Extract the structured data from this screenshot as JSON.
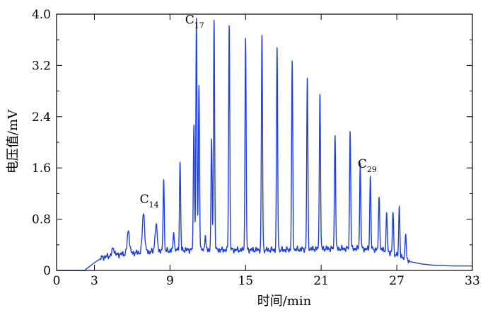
{
  "chart_data": {
    "type": "line",
    "xlabel": "时间/min",
    "ylabel": "电压值/mV",
    "xlim": [
      0,
      33
    ],
    "ylim": [
      0,
      4.0
    ],
    "xticks": [
      0,
      3,
      9,
      15,
      21,
      27,
      33
    ],
    "yticks": [
      0,
      0.8,
      1.6,
      2.4,
      3.2,
      4.0
    ],
    "xtick_labels": [
      "0",
      "3",
      "9",
      "15",
      "21",
      "27",
      "33"
    ],
    "ytick_labels": [
      "0",
      "0.8",
      "1.6",
      "2.4",
      "3.2",
      "4.0"
    ],
    "color": "#1f3fe0",
    "annotations": [
      {
        "base": "C",
        "sub": "14",
        "x": 6.6,
        "y": 1.05
      },
      {
        "base": "C",
        "sub": "17",
        "x": 10.2,
        "y": 3.85
      },
      {
        "base": "C",
        "sub": "29",
        "x": 23.9,
        "y": 1.6
      }
    ],
    "baseline": [
      [
        0,
        0.0
      ],
      [
        2.2,
        0.0
      ],
      [
        3.0,
        0.12
      ],
      [
        3.6,
        0.2
      ],
      [
        4.5,
        0.24
      ],
      [
        5.5,
        0.26
      ],
      [
        6.5,
        0.28
      ],
      [
        8.0,
        0.3
      ],
      [
        10.0,
        0.32
      ],
      [
        12.0,
        0.32
      ],
      [
        15.0,
        0.32
      ],
      [
        18.0,
        0.32
      ],
      [
        21.0,
        0.34
      ],
      [
        24.0,
        0.34
      ],
      [
        26.0,
        0.32
      ],
      [
        27.0,
        0.24
      ],
      [
        28.0,
        0.14
      ],
      [
        29.0,
        0.1
      ],
      [
        30.0,
        0.08
      ],
      [
        31.5,
        0.07
      ],
      [
        33.0,
        0.07
      ]
    ],
    "peaks": [
      {
        "x": 4.5,
        "y": 0.35
      },
      {
        "x": 5.7,
        "y": 0.62
      },
      {
        "x": 6.9,
        "y": 0.9
      },
      {
        "x": 7.9,
        "y": 0.7
      },
      {
        "x": 8.5,
        "y": 1.45
      },
      {
        "x": 9.3,
        "y": 0.62
      },
      {
        "x": 9.8,
        "y": 1.7
      },
      {
        "x": 10.9,
        "y": 2.3
      },
      {
        "x": 11.1,
        "y": 3.9
      },
      {
        "x": 11.3,
        "y": 2.9
      },
      {
        "x": 11.8,
        "y": 0.55
      },
      {
        "x": 12.3,
        "y": 2.0
      },
      {
        "x": 12.5,
        "y": 3.92
      },
      {
        "x": 13.7,
        "y": 3.85
      },
      {
        "x": 15.0,
        "y": 3.6
      },
      {
        "x": 16.3,
        "y": 3.65
      },
      {
        "x": 17.5,
        "y": 3.45
      },
      {
        "x": 18.7,
        "y": 3.25
      },
      {
        "x": 19.9,
        "y": 3.0
      },
      {
        "x": 20.9,
        "y": 2.78
      },
      {
        "x": 22.1,
        "y": 2.15
      },
      {
        "x": 23.3,
        "y": 2.2
      },
      {
        "x": 24.1,
        "y": 1.66
      },
      {
        "x": 24.9,
        "y": 1.48
      },
      {
        "x": 25.6,
        "y": 1.18
      },
      {
        "x": 26.2,
        "y": 0.9
      },
      {
        "x": 26.7,
        "y": 0.92
      },
      {
        "x": 27.2,
        "y": 1.02
      },
      {
        "x": 27.7,
        "y": 0.6
      }
    ]
  }
}
